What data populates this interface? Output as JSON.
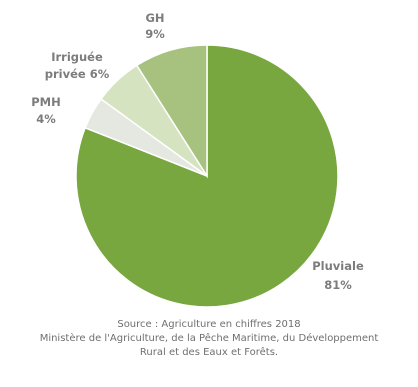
{
  "chart_data": {
    "type": "pie",
    "slices": [
      {
        "label": "Pluviale",
        "value": 81,
        "color": "#78a63f"
      },
      {
        "label": "PMH",
        "value": 4,
        "color": "#e4e8e0"
      },
      {
        "label": "Irriguée privée",
        "value": 6,
        "color": "#d5e3c0"
      },
      {
        "label": "GH",
        "value": 9,
        "color": "#a7c27f"
      }
    ],
    "value_labels": [
      "81%",
      "4%",
      "6%",
      "9%"
    ],
    "start": "top",
    "direction": "clockwise"
  },
  "labels": {
    "pluviale": {
      "name": "Pluviale",
      "value": "81%"
    },
    "pmh": {
      "name": "PMH",
      "value": "4%"
    },
    "irriguee": {
      "name": "Irriguée",
      "value": "privée 6%"
    },
    "gh": {
      "name": "GH",
      "value": "9%"
    }
  },
  "source": {
    "line1": "Source : Agriculture en chiffres 2018",
    "line2": "Ministère de l'Agriculture, de la Pêche Maritime, du Développement",
    "line3": "Rural et des Eaux et Forêts."
  }
}
